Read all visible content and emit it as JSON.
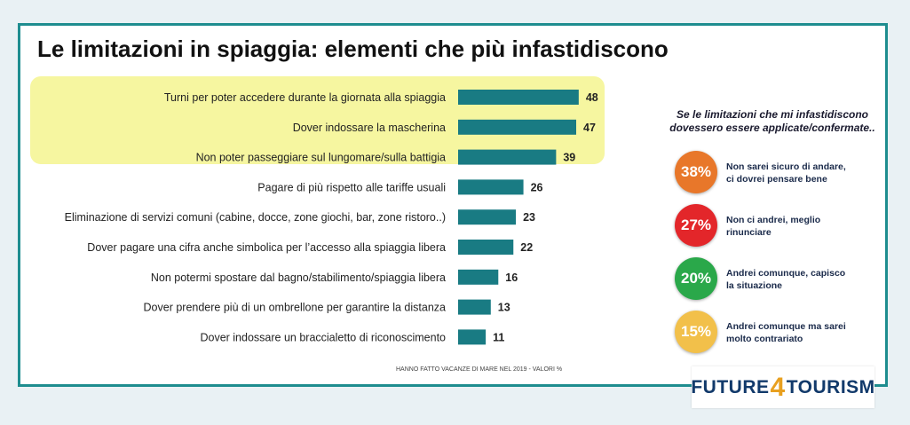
{
  "title": "Le limitazioni in spiaggia: elementi che più infastidiscono",
  "footnote": "HANNO FATTO VACANZE DI MARE NEL 2019 - VALORI %",
  "colors": {
    "bar": "#197b83",
    "highlight": "#f6f6a0",
    "frame": "#1e8d8f"
  },
  "chart_data": {
    "type": "bar",
    "orientation": "horizontal",
    "categories": [
      "Turni per poter accedere durante la giornata alla spiaggia",
      "Dover indossare la mascherina",
      "Non poter passeggiare sul lungomare/sulla battigia",
      "Pagare di più rispetto alle tariffe usuali",
      "Eliminazione di servizi comuni (cabine, docce, zone giochi, bar, zone ristoro..)",
      "Dover pagare una cifra anche simbolica per l’accesso alla spiaggia libera",
      "Non potermi spostare dal bagno/stabilimento/spiaggia libera",
      "Dover prendere più di un ombrellone per garantire la distanza",
      "Dover indossare un braccialetto di riconoscimento"
    ],
    "values": [
      48,
      47,
      39,
      26,
      23,
      22,
      16,
      13,
      11
    ],
    "highlighted_top": 3,
    "title": "Le limitazioni in spiaggia: elementi che più infastidiscono"
  },
  "scenarios": {
    "heading_line1": "Se le limitazioni che mi infastidiscono",
    "heading_line2": "dovessero essere applicate/confermate..",
    "items": [
      {
        "value": "38%",
        "color": "#e8772a",
        "line1": "Non sarei sicuro di andare,",
        "line2": "ci dovrei pensare bene"
      },
      {
        "value": "27%",
        "color": "#e3262a",
        "line1": "Non ci andrei, meglio",
        "line2": "rinunciare"
      },
      {
        "value": "20%",
        "color": "#2aa84a",
        "line1": "Andrei comunque, capisco",
        "line2": "la situazione"
      },
      {
        "value": "15%",
        "color": "#f2c04a",
        "line1": "Andrei comunque ma sarei",
        "line2": "molto contrariato"
      }
    ]
  },
  "logo": {
    "part1": "FUTURE",
    "part2": "4",
    "part3": "TOURISM"
  }
}
